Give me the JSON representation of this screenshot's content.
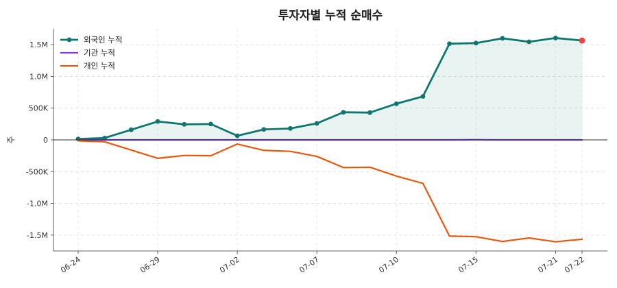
{
  "chart_data": {
    "type": "line",
    "title": "투자자별 누적 순매수",
    "xlabel": "",
    "ylabel": "주",
    "x": [
      "06-24",
      "06-25",
      "06-26",
      "06-29",
      "06-30",
      "07-01",
      "07-02",
      "07-03",
      "07-06",
      "07-07",
      "07-08",
      "07-09",
      "07-10",
      "07-13",
      "07-14",
      "07-15",
      "07-16",
      "07-17",
      "07-21",
      "07-22"
    ],
    "x_tick_labels": [
      "06-24",
      "06-29",
      "07-02",
      "07-07",
      "07-10",
      "07-15",
      "07-21",
      "07-22"
    ],
    "y_tick_labels": [
      "1.5M",
      "1.0M",
      "500K",
      "0",
      "-500K",
      "-1.0M",
      "-1.5M"
    ],
    "ylim": [
      -1750000,
      1750000
    ],
    "grid": true,
    "legend_position": "top-left",
    "series": [
      {
        "name": "외국인 누적",
        "color": "#0f766e",
        "marker": "circle",
        "fill": true,
        "values": [
          15000,
          30000,
          160000,
          290000,
          245000,
          250000,
          65000,
          165000,
          180000,
          260000,
          435000,
          430000,
          570000,
          685000,
          1515000,
          1525000,
          1600000,
          1545000,
          1605000,
          1565000
        ]
      },
      {
        "name": "기관 누적",
        "color": "#7c3aed",
        "values": [
          0,
          0,
          0,
          0,
          0,
          0,
          0,
          0,
          0,
          0,
          0,
          0,
          0,
          0,
          0,
          3000,
          0,
          0,
          0,
          0
        ]
      },
      {
        "name": "개인 누적",
        "color": "#ea580c",
        "values": [
          -15000,
          -30000,
          -160000,
          -290000,
          -245000,
          -250000,
          -65000,
          -165000,
          -180000,
          -260000,
          -435000,
          -430000,
          -570000,
          -685000,
          -1515000,
          -1525000,
          -1600000,
          -1545000,
          -1605000,
          -1565000
        ]
      }
    ],
    "highlight_last_point_color": "#ef4444",
    "zero_line": true
  }
}
